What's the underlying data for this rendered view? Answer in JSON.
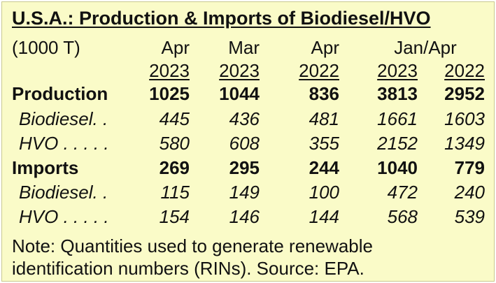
{
  "title": "U.S.A.: Production & Imports of Biodiesel/HVO",
  "unit": "(1000 T)",
  "headers": {
    "col1": {
      "top": "Apr",
      "bottom": "2023"
    },
    "col2": {
      "top": "Mar",
      "bottom": "2023"
    },
    "col3": {
      "top": "Apr",
      "bottom": "2022"
    },
    "group": "Jan/Apr",
    "col4": {
      "bottom": "2023"
    },
    "col5": {
      "bottom": "2022"
    }
  },
  "rows": [
    {
      "label": "Production",
      "values": [
        "1025",
        "1044",
        "836",
        "3813",
        "2952"
      ]
    },
    {
      "label": "Biodiesel. .",
      "values": [
        "445",
        "436",
        "481",
        "1661",
        "1603"
      ]
    },
    {
      "label": "HVO . . . . .",
      "values": [
        "580",
        "608",
        "355",
        "2152",
        "1349"
      ]
    },
    {
      "label": "Imports",
      "values": [
        "269",
        "295",
        "244",
        "1040",
        "779"
      ]
    },
    {
      "label": "Biodiesel. .",
      "values": [
        "115",
        "149",
        "100",
        "472",
        "240"
      ]
    },
    {
      "label": "HVO . . . . .",
      "values": [
        "154",
        "146",
        "144",
        "568",
        "539"
      ]
    }
  ],
  "note": {
    "line1": "Note:  Quantities used to generate renewable",
    "line2": "identification numbers (RINs).  Source: EPA."
  }
}
